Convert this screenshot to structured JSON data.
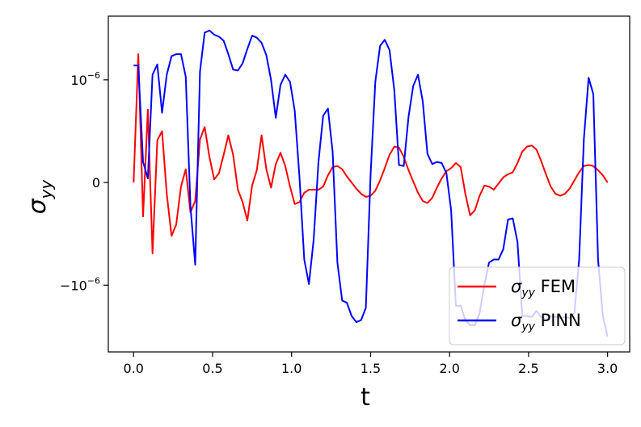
{
  "chart_data": {
    "type": "line",
    "xlabel": "t",
    "ylabel": "σ",
    "ylabel_sub": "yy",
    "xlim": [
      -0.16,
      3.14
    ],
    "ylim": [
      -1.65,
      1.62
    ],
    "x_ticks": [
      {
        "value": 0.0,
        "label": "0.0"
      },
      {
        "value": 0.5,
        "label": "0.5"
      },
      {
        "value": 1.0,
        "label": "1.0"
      },
      {
        "value": 1.5,
        "label": "1.5"
      },
      {
        "value": 2.0,
        "label": "2.0"
      },
      {
        "value": 2.5,
        "label": "2.5"
      },
      {
        "value": 3.0,
        "label": "3.0"
      }
    ],
    "y_ticks": [
      {
        "value": 1,
        "base": "10",
        "exp": "−6"
      },
      {
        "value": 0,
        "base": "0",
        "exp": ""
      },
      {
        "value": -1,
        "base": "−10",
        "exp": "−6"
      }
    ],
    "y_unit_note": "y values are in units of 1e-6",
    "grid": false,
    "legend": {
      "placement": "bottom-right"
    },
    "series": [
      {
        "name_main": "σ",
        "name_sub": "yy",
        "name_suffix": "FEM",
        "color": "#ff0000",
        "x": [
          0.0,
          0.03,
          0.06,
          0.09,
          0.12,
          0.15,
          0.18,
          0.21,
          0.24,
          0.27,
          0.3,
          0.33,
          0.36,
          0.39,
          0.42,
          0.45,
          0.48,
          0.51,
          0.54,
          0.57,
          0.6,
          0.63,
          0.66,
          0.69,
          0.72,
          0.75,
          0.78,
          0.81,
          0.84,
          0.87,
          0.9,
          0.93,
          0.96,
          0.99,
          1.02,
          1.05,
          1.08,
          1.11,
          1.14,
          1.17,
          1.2,
          1.23,
          1.26,
          1.29,
          1.32,
          1.35,
          1.38,
          1.41,
          1.44,
          1.47,
          1.5,
          1.53,
          1.56,
          1.59,
          1.62,
          1.65,
          1.68,
          1.71,
          1.74,
          1.77,
          1.8,
          1.83,
          1.86,
          1.89,
          1.92,
          1.95,
          1.98,
          2.01,
          2.04,
          2.07,
          2.1,
          2.13,
          2.16,
          2.19,
          2.22,
          2.25,
          2.28,
          2.31,
          2.34,
          2.37,
          2.4,
          2.43,
          2.46,
          2.49,
          2.52,
          2.55,
          2.58,
          2.61,
          2.64,
          2.67,
          2.7,
          2.73,
          2.76,
          2.79,
          2.82,
          2.85,
          2.88,
          2.91,
          2.94,
          2.97,
          3.0
        ],
        "y": [
          0.0,
          1.25,
          -0.33,
          0.71,
          -0.69,
          0.41,
          0.5,
          -0.11,
          -0.52,
          -0.41,
          -0.04,
          0.13,
          -0.29,
          -0.18,
          0.42,
          0.54,
          0.25,
          0.03,
          0.09,
          0.27,
          0.46,
          0.27,
          -0.07,
          -0.19,
          -0.37,
          -0.03,
          0.12,
          0.46,
          0.13,
          -0.05,
          0.18,
          0.29,
          0.16,
          -0.04,
          -0.21,
          -0.19,
          -0.1,
          -0.07,
          -0.07,
          -0.07,
          -0.04,
          0.07,
          0.15,
          0.16,
          0.13,
          0.06,
          0.0,
          -0.06,
          -0.11,
          -0.14,
          -0.13,
          -0.08,
          0.02,
          0.14,
          0.27,
          0.35,
          0.34,
          0.25,
          0.12,
          0.01,
          -0.1,
          -0.18,
          -0.2,
          -0.15,
          -0.05,
          0.04,
          0.11,
          0.14,
          0.19,
          0.15,
          -0.11,
          -0.32,
          -0.27,
          -0.13,
          -0.03,
          -0.04,
          -0.07,
          -0.01,
          0.05,
          0.08,
          0.1,
          0.19,
          0.3,
          0.35,
          0.36,
          0.32,
          0.21,
          0.08,
          -0.04,
          -0.11,
          -0.13,
          -0.11,
          -0.06,
          0.02,
          0.1,
          0.16,
          0.17,
          0.16,
          0.12,
          0.07,
          0.0
        ]
      },
      {
        "name_main": "σ",
        "name_sub": "yy",
        "name_suffix": "PINN",
        "color": "#0000ff",
        "x": [
          0.0,
          0.03,
          0.06,
          0.09,
          0.12,
          0.15,
          0.18,
          0.21,
          0.24,
          0.27,
          0.3,
          0.33,
          0.36,
          0.39,
          0.42,
          0.45,
          0.48,
          0.51,
          0.54,
          0.57,
          0.6,
          0.63,
          0.66,
          0.69,
          0.72,
          0.75,
          0.78,
          0.81,
          0.84,
          0.87,
          0.9,
          0.93,
          0.96,
          0.99,
          1.02,
          1.05,
          1.08,
          1.11,
          1.14,
          1.17,
          1.2,
          1.23,
          1.26,
          1.29,
          1.32,
          1.35,
          1.38,
          1.41,
          1.44,
          1.47,
          1.5,
          1.53,
          1.56,
          1.59,
          1.62,
          1.65,
          1.68,
          1.71,
          1.74,
          1.77,
          1.8,
          1.83,
          1.86,
          1.89,
          1.92,
          1.95,
          1.98,
          2.01,
          2.04,
          2.07,
          2.1,
          2.13,
          2.16,
          2.19,
          2.22,
          2.25,
          2.28,
          2.31,
          2.34,
          2.37,
          2.4,
          2.43,
          2.46,
          2.49,
          2.52,
          2.55,
          2.58,
          2.61,
          2.64,
          2.67,
          2.7,
          2.73,
          2.76,
          2.79,
          2.82,
          2.85,
          2.88,
          2.91,
          2.94,
          2.97,
          3.0
        ],
        "y": [
          1.14,
          1.14,
          0.2,
          0.04,
          1.05,
          1.15,
          0.68,
          1.05,
          1.23,
          1.25,
          1.25,
          1.03,
          -0.23,
          -0.8,
          1.08,
          1.46,
          1.48,
          1.44,
          1.42,
          1.38,
          1.25,
          1.1,
          1.09,
          1.16,
          1.3,
          1.43,
          1.41,
          1.36,
          1.24,
          1.0,
          0.63,
          0.95,
          1.05,
          0.98,
          0.7,
          0.05,
          -0.75,
          -0.99,
          -0.55,
          0.2,
          0.65,
          0.72,
          0.3,
          -0.78,
          -1.15,
          -1.17,
          -1.3,
          -1.36,
          -1.34,
          -1.22,
          0.08,
          0.98,
          1.33,
          1.39,
          1.29,
          0.9,
          0.17,
          0.16,
          0.64,
          0.94,
          1.05,
          0.79,
          0.28,
          0.18,
          0.2,
          0.19,
          0.09,
          -0.27,
          -1.2,
          -1.2,
          -1.34,
          -1.39,
          -1.39,
          -1.27,
          -1.0,
          -0.78,
          -0.75,
          -0.75,
          -0.65,
          -0.36,
          -0.35,
          -0.58,
          -1.3,
          -1.3,
          -1.31,
          -1.25,
          -1.31,
          -1.34,
          -1.3,
          -1.31,
          -1.32,
          -1.31,
          -1.32,
          -1.27,
          -0.75,
          0.42,
          1.02,
          0.86,
          -0.75,
          -1.3,
          -1.5
        ]
      }
    ]
  }
}
